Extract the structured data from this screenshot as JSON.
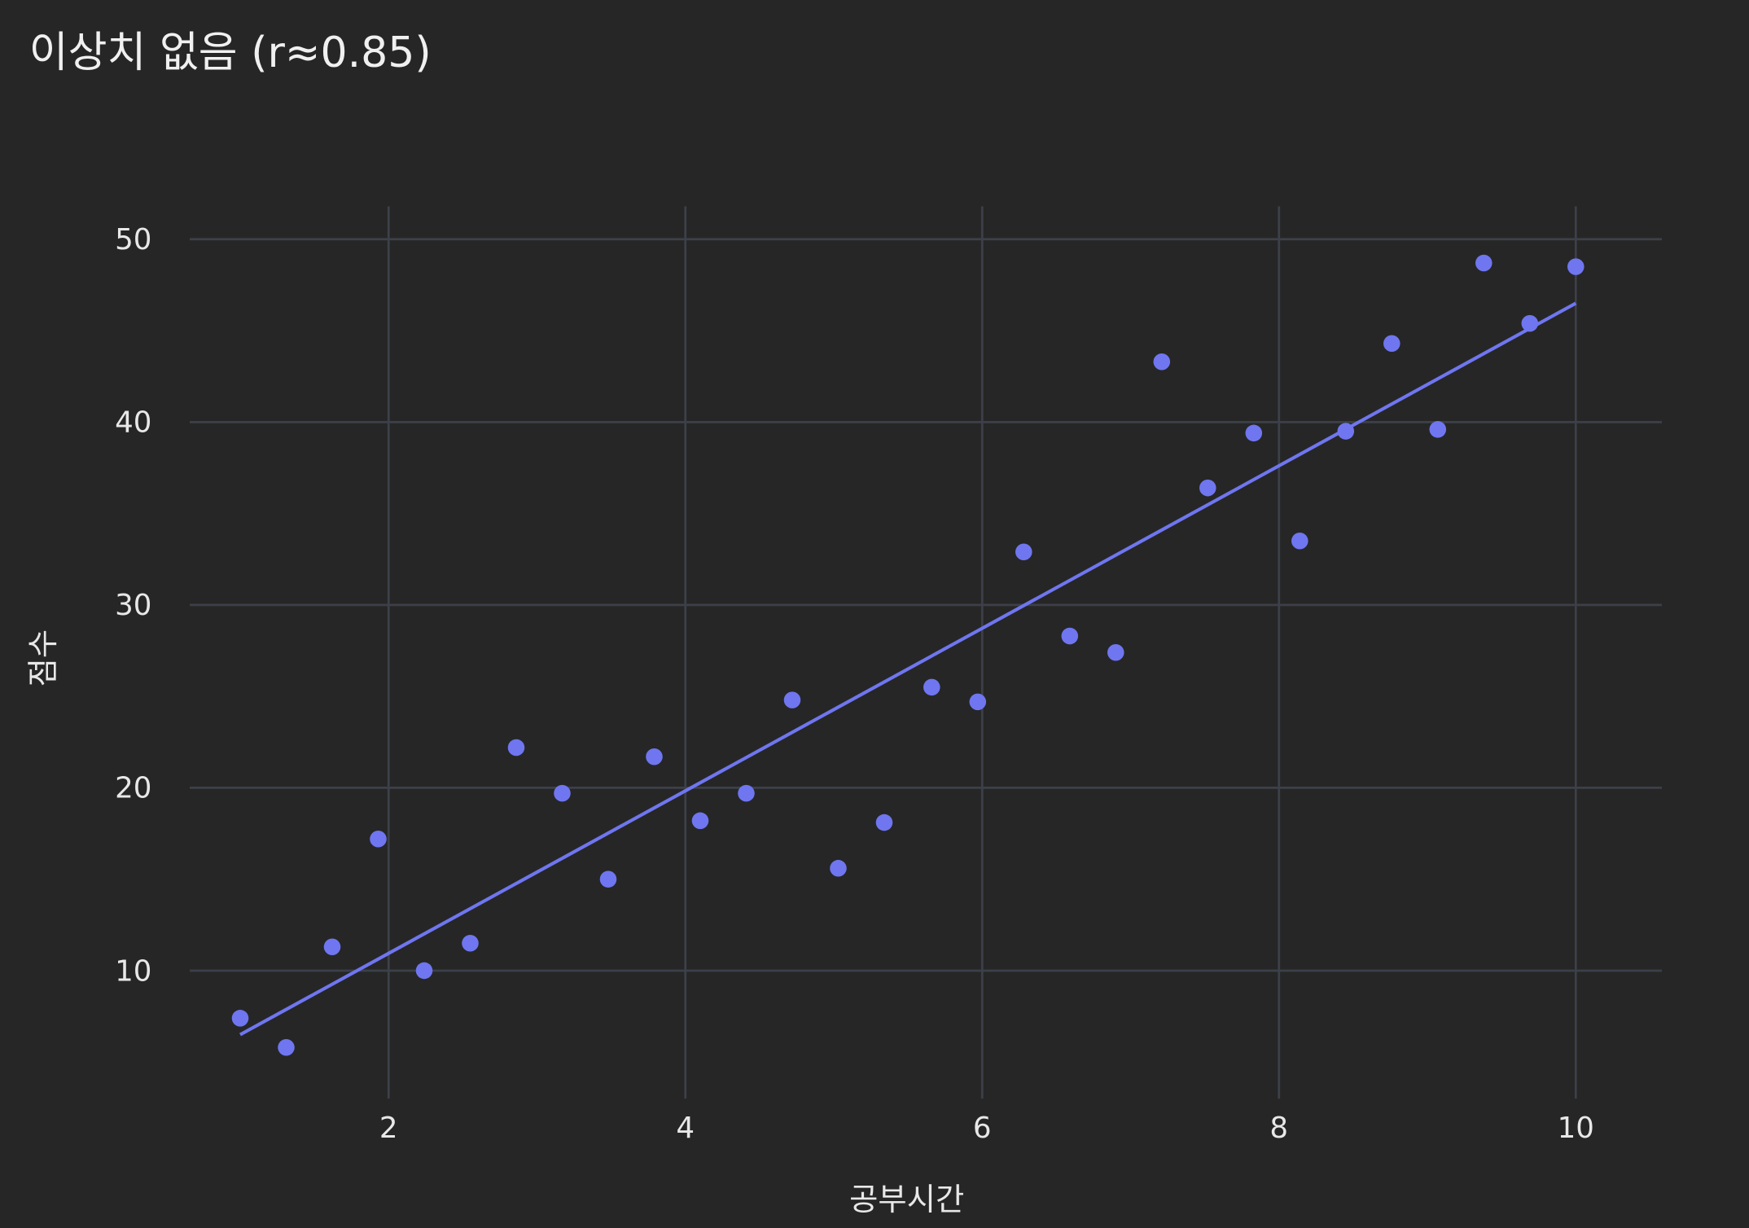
{
  "chart_data": {
    "type": "scatter",
    "title": "이상치 없음 (r≈0.85)",
    "xlabel": "공부시간",
    "ylabel": "점수",
    "xlim": [
      0.66,
      10.58
    ],
    "ylim": [
      3.0,
      51.8
    ],
    "xticks": [
      2,
      4,
      6,
      8,
      10
    ],
    "yticks": [
      10,
      20,
      30,
      40,
      50
    ],
    "grid": true,
    "colors": {
      "background": "#262626",
      "grid": "#3c4049",
      "marker": "#6f76f0",
      "line": "#6f76f0"
    },
    "series": [
      {
        "mode": "markers",
        "x": [
          1.0,
          1.31,
          1.62,
          1.93,
          2.24,
          2.55,
          2.86,
          3.17,
          3.48,
          3.79,
          4.1,
          4.41,
          4.72,
          5.03,
          5.34,
          5.66,
          5.97,
          6.28,
          6.59,
          6.9,
          7.21,
          7.52,
          7.83,
          8.14,
          8.45,
          8.76,
          9.07,
          9.38,
          9.69,
          10.0
        ],
        "y": [
          7.4,
          5.8,
          11.3,
          17.2,
          10.0,
          11.5,
          22.2,
          19.7,
          15.0,
          21.7,
          18.2,
          19.7,
          24.8,
          15.6,
          18.1,
          25.5,
          24.7,
          32.9,
          28.3,
          27.4,
          43.3,
          36.4,
          39.4,
          33.5,
          39.5,
          44.3,
          39.6,
          48.7,
          45.4,
          48.5
        ]
      },
      {
        "mode": "lines",
        "x": [
          1.0,
          10.0
        ],
        "y": [
          6.5,
          46.5
        ]
      }
    ]
  }
}
